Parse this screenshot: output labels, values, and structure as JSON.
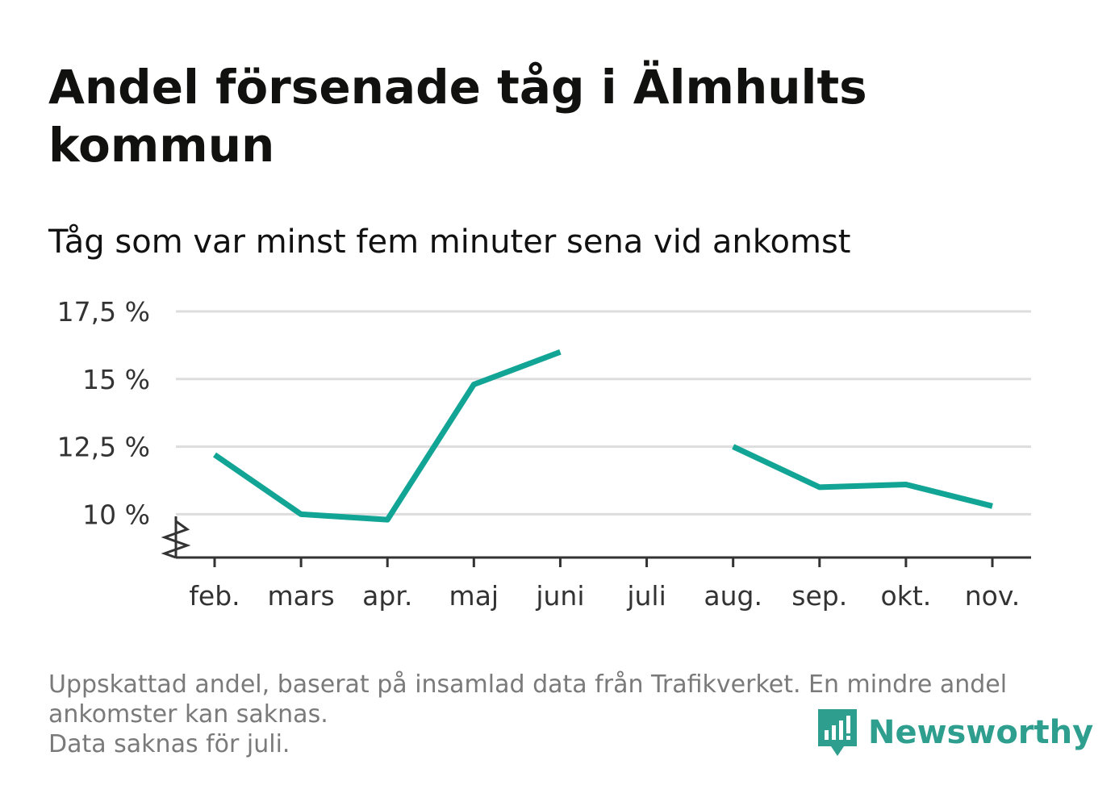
{
  "title": "Andel försenade tåg i Älmhults kommun",
  "subtitle": "Tåg som var minst fem minuter sena vid ankomst",
  "footer": {
    "line1": "Uppskattad andel, baserat på insamlad data från Trafikverket. En mindre andel",
    "line2": "ankomster kan saknas.",
    "line3": "Data saknas för juli."
  },
  "logo_text": "Newsworthy",
  "colors": {
    "line": "#12a595",
    "grid": "#dddddd",
    "axis": "#333333",
    "logo": "#2e9e8e"
  },
  "chart_data": {
    "type": "line",
    "categories": [
      "feb.",
      "mars",
      "apr.",
      "maj",
      "juni",
      "juli",
      "aug.",
      "sep.",
      "okt.",
      "nov."
    ],
    "series": [
      {
        "values": [
          12.2,
          10.0,
          9.8,
          14.8,
          16.0,
          null,
          12.5,
          11.0,
          11.1,
          10.3
        ]
      }
    ],
    "y_ticks": [
      10,
      12.5,
      15,
      17.5
    ],
    "y_tick_labels": [
      "10 %",
      "12,5 %",
      "15 %",
      "17,5 %"
    ],
    "ylim": [
      8.4,
      17.5
    ],
    "axis_break": true,
    "grid": true,
    "xlabel": "",
    "ylabel": ""
  }
}
